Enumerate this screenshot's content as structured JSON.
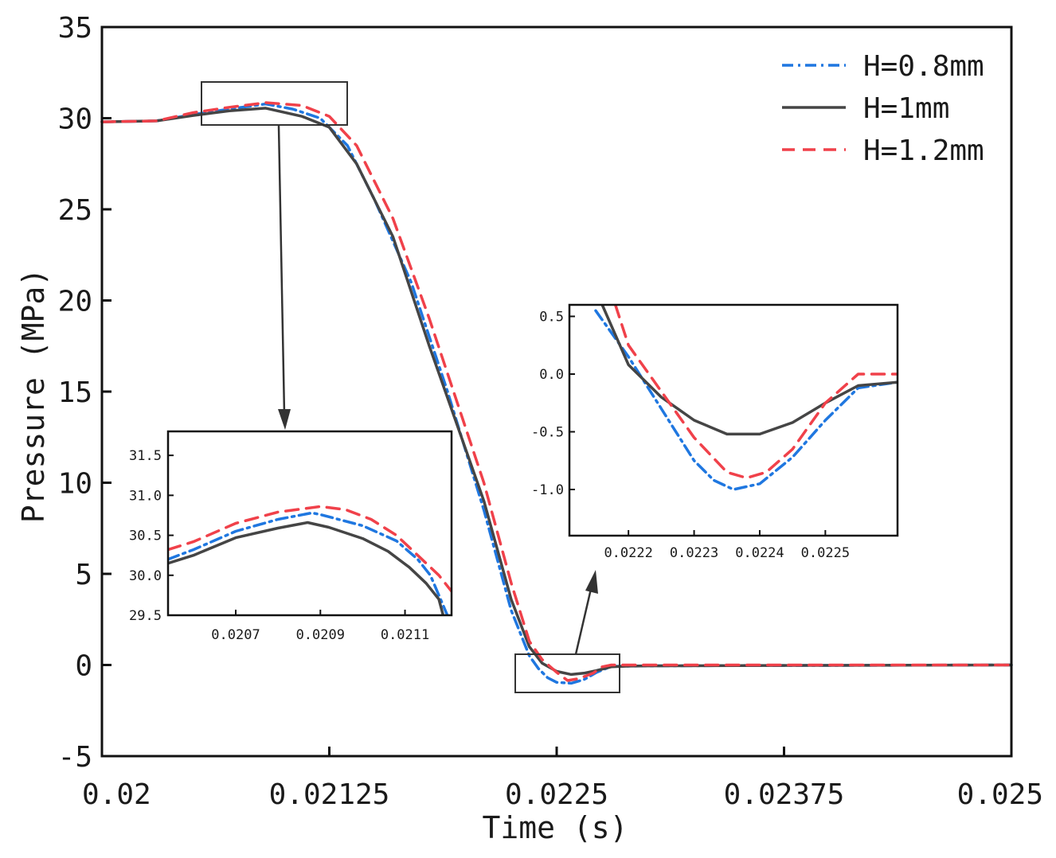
{
  "chart_data": {
    "type": "line",
    "xlabel": "Time (s)",
    "ylabel": "Pressure (MPa)",
    "xlim": [
      0.02,
      0.025
    ],
    "ylim": [
      -5,
      35
    ],
    "x_ticks": [
      "0.02",
      "0.02125",
      "0.0225",
      "0.02375",
      "0.025"
    ],
    "y_ticks": [
      "-5",
      "0",
      "5",
      "10",
      "15",
      "20",
      "25",
      "30",
      "35"
    ],
    "legend": {
      "placement": "top-right",
      "entries": [
        "H=0.8mm",
        "H=1mm",
        "H=1.2mm"
      ]
    },
    "series": [
      {
        "name": "H=0.8mm",
        "color": "#1f77e0",
        "style": "dash-dot",
        "points": [
          [
            0.02,
            29.8
          ],
          [
            0.0203,
            29.85
          ],
          [
            0.0205,
            30.2
          ],
          [
            0.0207,
            30.5
          ],
          [
            0.0209,
            30.78
          ],
          [
            0.02105,
            30.5
          ],
          [
            0.0212,
            30.0
          ],
          [
            0.02135,
            28.5
          ],
          [
            0.0215,
            25.5
          ],
          [
            0.0217,
            21.0
          ],
          [
            0.0219,
            15.0
          ],
          [
            0.0221,
            8.5
          ],
          [
            0.02225,
            3.0
          ],
          [
            0.02235,
            0.5
          ],
          [
            0.0224,
            -0.2
          ],
          [
            0.02245,
            -0.7
          ],
          [
            0.0225,
            -0.95
          ],
          [
            0.02258,
            -1.0
          ],
          [
            0.02265,
            -0.8
          ],
          [
            0.02272,
            -0.4
          ],
          [
            0.0228,
            -0.08
          ],
          [
            0.0229,
            -0.06
          ],
          [
            0.023,
            -0.05
          ],
          [
            0.0235,
            -0.03
          ],
          [
            0.024,
            -0.02
          ],
          [
            0.025,
            0.0
          ]
        ]
      },
      {
        "name": "H=1mm",
        "color": "#454545",
        "style": "solid",
        "points": [
          [
            0.02,
            29.8
          ],
          [
            0.0203,
            29.85
          ],
          [
            0.0205,
            30.15
          ],
          [
            0.0207,
            30.4
          ],
          [
            0.0209,
            30.55
          ],
          [
            0.0211,
            30.1
          ],
          [
            0.02125,
            29.5
          ],
          [
            0.0214,
            27.5
          ],
          [
            0.0216,
            23.5
          ],
          [
            0.0218,
            17.5
          ],
          [
            0.0221,
            9.0
          ],
          [
            0.02225,
            3.6
          ],
          [
            0.02235,
            1.0
          ],
          [
            0.02242,
            0.1
          ],
          [
            0.0225,
            -0.35
          ],
          [
            0.02258,
            -0.52
          ],
          [
            0.02265,
            -0.45
          ],
          [
            0.02272,
            -0.3
          ],
          [
            0.0228,
            -0.1
          ],
          [
            0.0229,
            -0.06
          ],
          [
            0.023,
            -0.05
          ],
          [
            0.0235,
            -0.03
          ],
          [
            0.024,
            -0.02
          ],
          [
            0.025,
            0.0
          ]
        ]
      },
      {
        "name": "H=1.2mm",
        "color": "#f0414a",
        "style": "dashed",
        "points": [
          [
            0.02,
            29.8
          ],
          [
            0.0203,
            29.85
          ],
          [
            0.0205,
            30.3
          ],
          [
            0.0207,
            30.6
          ],
          [
            0.0209,
            30.85
          ],
          [
            0.0211,
            30.7
          ],
          [
            0.02125,
            30.1
          ],
          [
            0.0214,
            28.5
          ],
          [
            0.0216,
            24.5
          ],
          [
            0.0218,
            19.0
          ],
          [
            0.0221,
            10.0
          ],
          [
            0.02225,
            4.5
          ],
          [
            0.02235,
            1.3
          ],
          [
            0.02242,
            0.3
          ],
          [
            0.0225,
            -0.4
          ],
          [
            0.02256,
            -0.85
          ],
          [
            0.02262,
            -0.75
          ],
          [
            0.0227,
            -0.45
          ],
          [
            0.02275,
            -0.1
          ],
          [
            0.0228,
            0.0
          ],
          [
            0.0229,
            0.0
          ],
          [
            0.0235,
            0.0
          ],
          [
            0.024,
            0.0
          ],
          [
            0.025,
            0.0
          ]
        ]
      }
    ],
    "insets": [
      {
        "name": "zoom-peak",
        "xlim": [
          0.02054,
          0.02121
        ],
        "ylim": [
          29.5,
          31.8
        ],
        "x_ticks": [
          "0.0207",
          "0.0209",
          "0.0211"
        ],
        "y_ticks": [
          "29.5",
          "30.0",
          "30.5",
          "31.0",
          "31.5"
        ],
        "series": [
          {
            "name": "H=0.8mm",
            "points": [
              [
                0.02054,
                30.2
              ],
              [
                0.0206,
                30.32
              ],
              [
                0.0207,
                30.55
              ],
              [
                0.0208,
                30.7
              ],
              [
                0.02088,
                30.78
              ],
              [
                0.0209,
                30.76
              ],
              [
                0.021,
                30.62
              ],
              [
                0.02108,
                30.43
              ],
              [
                0.02113,
                30.2
              ],
              [
                0.02116,
                30.0
              ],
              [
                0.02118,
                29.75
              ],
              [
                0.0212,
                29.5
              ]
            ]
          },
          {
            "name": "H=1mm",
            "points": [
              [
                0.02054,
                30.15
              ],
              [
                0.0206,
                30.25
              ],
              [
                0.0207,
                30.47
              ],
              [
                0.0208,
                30.59
              ],
              [
                0.02087,
                30.66
              ],
              [
                0.02092,
                30.6
              ],
              [
                0.021,
                30.46
              ],
              [
                0.02106,
                30.3
              ],
              [
                0.02111,
                30.1
              ],
              [
                0.02115,
                29.9
              ],
              [
                0.02118,
                29.7
              ],
              [
                0.02119,
                29.5
              ]
            ]
          },
          {
            "name": "H=1.2mm",
            "points": [
              [
                0.02054,
                30.32
              ],
              [
                0.0206,
                30.42
              ],
              [
                0.0207,
                30.65
              ],
              [
                0.0208,
                30.79
              ],
              [
                0.0209,
                30.86
              ],
              [
                0.02096,
                30.82
              ],
              [
                0.02102,
                30.7
              ],
              [
                0.02108,
                30.5
              ],
              [
                0.02114,
                30.2
              ],
              [
                0.02118,
                30.0
              ],
              [
                0.02121,
                29.8
              ]
            ]
          }
        ]
      },
      {
        "name": "zoom-dip",
        "xlim": [
          0.02211,
          0.02261
        ],
        "ylim": [
          -1.4,
          0.6
        ],
        "x_ticks": [
          "0.0222",
          "0.0223",
          "0.0224",
          "0.0225"
        ],
        "y_ticks": [
          "0.5",
          "0.0",
          "-0.5",
          "-1.0"
        ],
        "series": [
          {
            "name": "H=0.8mm",
            "points": [
              [
                0.02215,
                0.55
              ],
              [
                0.0222,
                0.15
              ],
              [
                0.02225,
                -0.3
              ],
              [
                0.0223,
                -0.75
              ],
              [
                0.02233,
                -0.92
              ],
              [
                0.02236,
                -1.0
              ],
              [
                0.0224,
                -0.95
              ],
              [
                0.02245,
                -0.72
              ],
              [
                0.0225,
                -0.4
              ],
              [
                0.02255,
                -0.12
              ],
              [
                0.02261,
                -0.07
              ]
            ]
          },
          {
            "name": "H=1mm",
            "points": [
              [
                0.02216,
                0.6
              ],
              [
                0.0222,
                0.08
              ],
              [
                0.02225,
                -0.2
              ],
              [
                0.0223,
                -0.4
              ],
              [
                0.02235,
                -0.52
              ],
              [
                0.0224,
                -0.52
              ],
              [
                0.02245,
                -0.42
              ],
              [
                0.0225,
                -0.25
              ],
              [
                0.02255,
                -0.1
              ],
              [
                0.02261,
                -0.07
              ]
            ]
          },
          {
            "name": "H=1.2mm",
            "points": [
              [
                0.02218,
                0.6
              ],
              [
                0.0222,
                0.25
              ],
              [
                0.02225,
                -0.15
              ],
              [
                0.0223,
                -0.55
              ],
              [
                0.02235,
                -0.85
              ],
              [
                0.02238,
                -0.9
              ],
              [
                0.02241,
                -0.85
              ],
              [
                0.02245,
                -0.65
              ],
              [
                0.0225,
                -0.25
              ],
              [
                0.02255,
                0.0
              ],
              [
                0.02261,
                0.0
              ]
            ]
          }
        ]
      }
    ]
  }
}
